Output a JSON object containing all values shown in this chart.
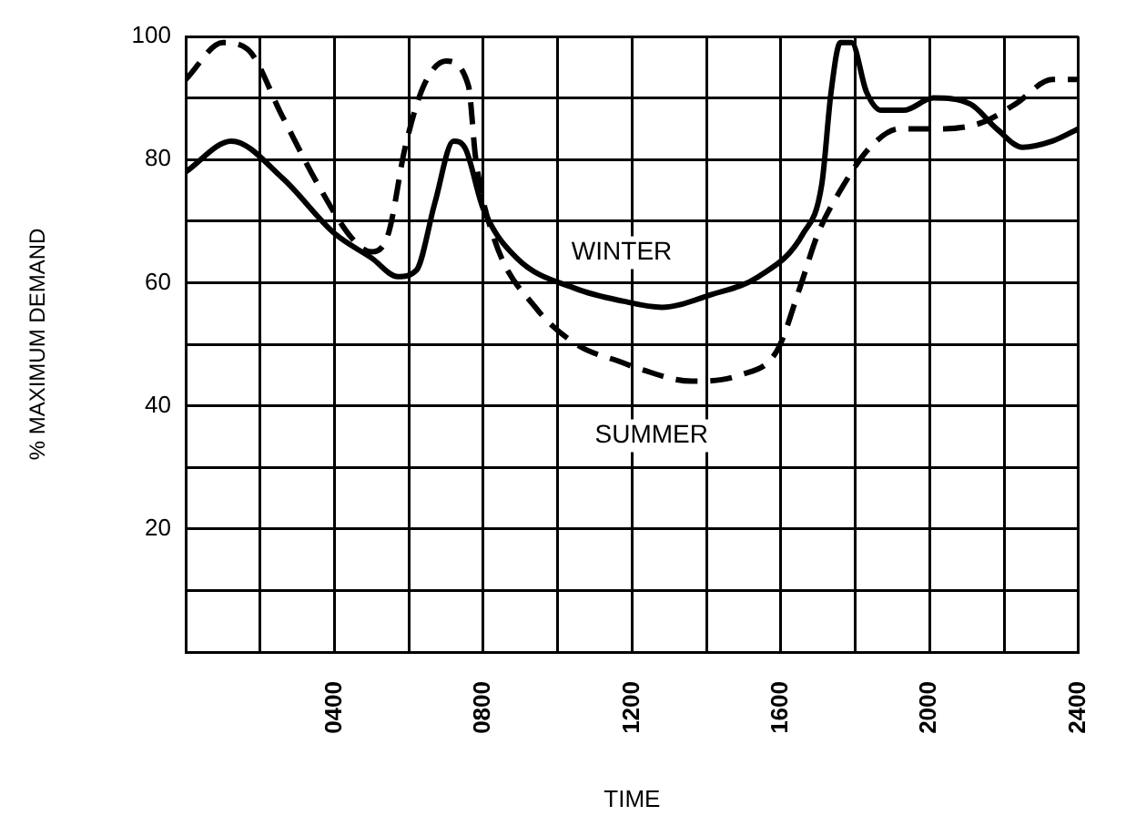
{
  "chart_data": {
    "type": "line",
    "xlabel": "TIME",
    "ylabel": "% MAXIMUM DEMAND",
    "xlim": [
      0,
      2400
    ],
    "xticks": [
      {
        "value": 0,
        "label": null
      },
      {
        "value": 200,
        "label": null
      },
      {
        "value": 400,
        "label": "0400"
      },
      {
        "value": 600,
        "label": null
      },
      {
        "value": 800,
        "label": "0800"
      },
      {
        "value": 1000,
        "label": null
      },
      1200,
      {
        "value": 1400,
        "label": null
      },
      1600,
      {
        "value": 1800,
        "label": null
      },
      2000,
      {
        "value": 2200,
        "label": null
      },
      2400
    ],
    "ylim": [
      0,
      100
    ],
    "yticks": [
      {
        "value": 0,
        "label": null
      },
      {
        "value": 10,
        "label": null
      },
      20,
      {
        "value": 30,
        "label": null
      },
      40,
      {
        "value": 50,
        "label": null
      },
      60,
      {
        "value": 70,
        "label": null
      },
      80,
      {
        "value": 90,
        "label": null
      },
      100
    ],
    "grid": true,
    "marker": "none",
    "series": [
      {
        "name": "WINTER",
        "color": "#000000",
        "line_style": "solid",
        "x": [
          0,
          123,
          260,
          400,
          500,
          570,
          620,
          670,
          720,
          750,
          800,
          890,
          1050,
          1175,
          1280,
          1410,
          1540,
          1660,
          1710,
          1735,
          1760,
          1790,
          1830,
          1870,
          1930,
          2010,
          2110,
          2180,
          2250,
          2330,
          2400
        ],
        "values": [
          78,
          83,
          77,
          68,
          64,
          61,
          62,
          73,
          83,
          82,
          72,
          64,
          59,
          57,
          56,
          58,
          61,
          68,
          76,
          91,
          99,
          99,
          91,
          88,
          88,
          90,
          89,
          85,
          82,
          83,
          85
        ]
      },
      {
        "name": "SUMMER",
        "color": "#000000",
        "line_style": "dashed",
        "x": [
          0,
          100,
          165,
          260,
          355,
          450,
          500,
          545,
          590,
          640,
          700,
          760,
          780,
          830,
          940,
          1050,
          1175,
          1220,
          1360,
          1490,
          1590,
          1650,
          1700,
          1760,
          1840,
          1920,
          2040,
          2140,
          2230,
          2330,
          2400
        ],
        "values": [
          93,
          99,
          98,
          87,
          76,
          67,
          65,
          68,
          82,
          92,
          96,
          92,
          80,
          67,
          56,
          50,
          47,
          46,
          44,
          45,
          49,
          59,
          68,
          75,
          82,
          85,
          85,
          86,
          89,
          93,
          93
        ]
      }
    ]
  }
}
